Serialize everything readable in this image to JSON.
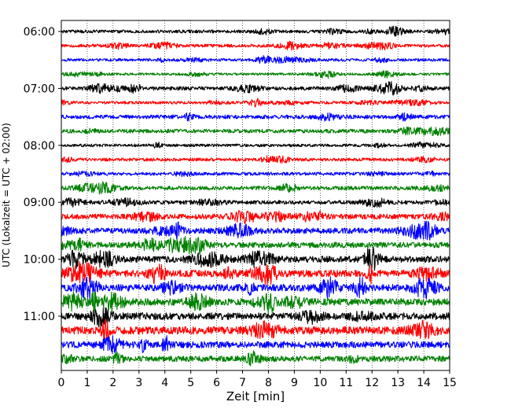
{
  "chart_data": {
    "type": "line",
    "title": "",
    "xlabel": "Zeit  [min]",
    "ylabel": "UTC (Lokalzeit = UTC + 02:00)",
    "xlim": [
      0,
      15
    ],
    "x_ticks": [
      "0",
      "1",
      "2",
      "3",
      "4",
      "5",
      "6",
      "7",
      "8",
      "9",
      "10",
      "11",
      "12",
      "13",
      "14",
      "15"
    ],
    "row_interval_minutes": 15,
    "y_tick_labels": [
      "06:00",
      "07:00",
      "08:00",
      "09:00",
      "10:00",
      "11:00"
    ],
    "grid": "vertical-dotted",
    "legend": "none",
    "series_cycle_colors": [
      "#000000",
      "#ff0000",
      "#0000ff",
      "#008000"
    ],
    "rows": [
      {
        "start": "06:00",
        "amplitude": 0.25
      },
      {
        "start": "06:15",
        "amplitude": 0.25
      },
      {
        "start": "06:30",
        "amplitude": 0.22
      },
      {
        "start": "06:45",
        "amplitude": 0.2
      },
      {
        "start": "07:00",
        "amplitude": 0.3
      },
      {
        "start": "07:15",
        "amplitude": 0.22
      },
      {
        "start": "07:30",
        "amplitude": 0.3
      },
      {
        "start": "07:45",
        "amplitude": 0.3
      },
      {
        "start": "08:00",
        "amplitude": 0.22
      },
      {
        "start": "08:15",
        "amplitude": 0.25
      },
      {
        "start": "08:30",
        "amplitude": 0.25
      },
      {
        "start": "08:45",
        "amplitude": 0.3
      },
      {
        "start": "09:00",
        "amplitude": 0.3
      },
      {
        "start": "09:15",
        "amplitude": 0.4
      },
      {
        "start": "09:30",
        "amplitude": 0.45
      },
      {
        "start": "09:45",
        "amplitude": 0.45
      },
      {
        "start": "10:00",
        "amplitude": 0.5
      },
      {
        "start": "10:15",
        "amplitude": 0.55
      },
      {
        "start": "10:30",
        "amplitude": 0.55
      },
      {
        "start": "10:45",
        "amplitude": 0.55
      },
      {
        "start": "11:00",
        "amplitude": 0.55
      },
      {
        "start": "11:15",
        "amplitude": 0.6
      },
      {
        "start": "11:30",
        "amplitude": 0.5
      },
      {
        "start": "11:45",
        "amplitude": 0.45
      }
    ]
  }
}
